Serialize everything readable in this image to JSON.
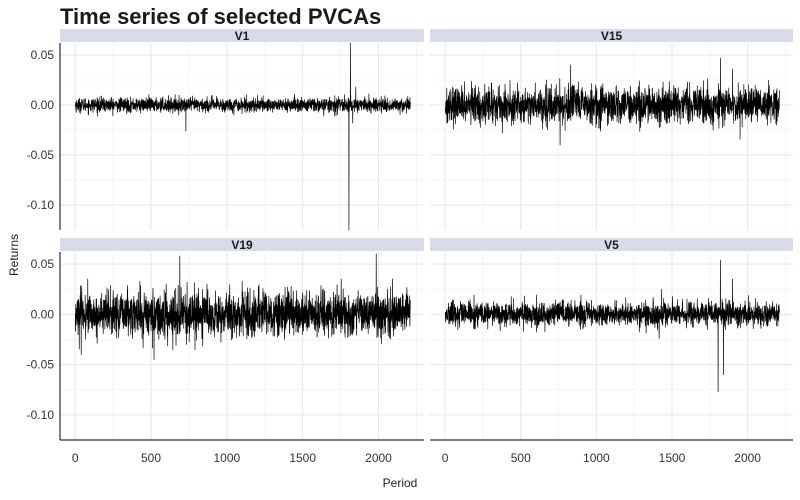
{
  "chart_data": {
    "type": "line",
    "title": "Time series of selected PVCAs",
    "xlabel": "Period",
    "ylabel": "Returns",
    "xlim": [
      -100,
      2300
    ],
    "ylim": [
      -0.125,
      0.062
    ],
    "x_ticks": [
      "0",
      "500",
      "1000",
      "1500",
      "2000"
    ],
    "y_ticks": [
      "0.05",
      "0.00",
      "-0.05",
      "-0.10"
    ],
    "grid": true,
    "layout": "facet 2x2",
    "n_periods": 2210,
    "panels": [
      {
        "name": "V1",
        "noise_sd": 0.0035,
        "events": [
          {
            "x": 730,
            "y": -0.026
          },
          {
            "x": 1805,
            "y": -0.125
          },
          {
            "x": 1815,
            "y": 0.062
          },
          {
            "x": 1830,
            "y": -0.018
          },
          {
            "x": 1850,
            "y": 0.018
          }
        ]
      },
      {
        "name": "V15",
        "noise_sd": 0.009,
        "events": [
          {
            "x": 830,
            "y": 0.04
          },
          {
            "x": 1820,
            "y": 0.047
          },
          {
            "x": 1900,
            "y": 0.036
          },
          {
            "x": 1950,
            "y": -0.034
          },
          {
            "x": 760,
            "y": -0.04
          }
        ]
      },
      {
        "name": "V19",
        "noise_sd": 0.011,
        "events": [
          {
            "x": 690,
            "y": 0.058
          },
          {
            "x": 1985,
            "y": 0.06
          },
          {
            "x": 520,
            "y": -0.045
          },
          {
            "x": 40,
            "y": -0.04
          }
        ]
      },
      {
        "name": "V5",
        "noise_sd": 0.006,
        "events": [
          {
            "x": 1805,
            "y": -0.077
          },
          {
            "x": 1820,
            "y": 0.054
          },
          {
            "x": 1840,
            "y": -0.06
          },
          {
            "x": 1430,
            "y": 0.025
          },
          {
            "x": 1415,
            "y": -0.024
          },
          {
            "x": 1900,
            "y": 0.035
          }
        ]
      }
    ]
  }
}
